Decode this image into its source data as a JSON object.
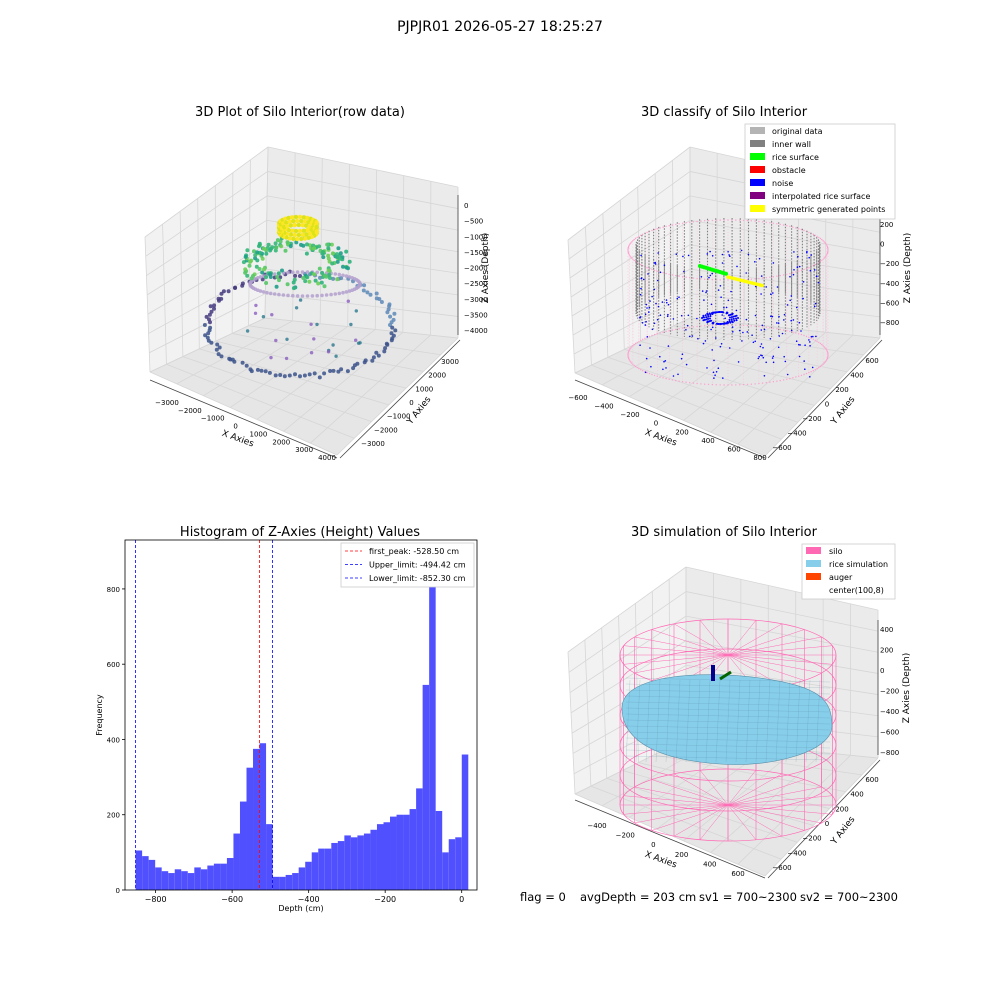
{
  "figure": {
    "title": "PJPJR01 2026-05-27 18:25:27",
    "status": {
      "flag": "flag = 0",
      "avg_depth": "avgDepth = 203 cm",
      "sv1": "sv1 = 700~2300",
      "sv2": "sv2 = 700~2300"
    }
  },
  "colors": {
    "hist_bar": "#5050ff",
    "first_peak": "#ff0000",
    "limits": "#0000ff",
    "silo": "#ff69b4",
    "rice_sim": "#87ceeb",
    "auger": "#ff4500",
    "original": "#b4b4b4",
    "inner_wall": "#808080",
    "rice_surface": "#00ff00",
    "obstacle": "#ff0000",
    "noise": "#0000ff",
    "interpolated": "#800080",
    "symmetric": "#ffff00",
    "pane": "#f2f2f2",
    "grid": "#d6d6d6"
  },
  "chart_data": [
    {
      "type": "scatter",
      "title": "3D Plot of Silo Interior(row data)",
      "xlabel": "X Axies",
      "ylabel": "Y Axies",
      "zlabel": "Z Axies (Depth)",
      "x_ticks": [
        "−3000",
        "−2000",
        "−1000",
        "0",
        "1000",
        "2000",
        "3000",
        "4000"
      ],
      "y_ticks": [
        "−3000",
        "−2000",
        "−1000",
        "0",
        "1000",
        "2000",
        "3000"
      ],
      "z_ticks": [
        "0",
        "−500",
        "−1000",
        "−1500",
        "−2000",
        "−2500",
        "−3000",
        "−3500",
        "−4000"
      ],
      "xlim": [
        -3500,
        4500
      ],
      "ylim": [
        -3500,
        3500
      ],
      "zlim": [
        -4200,
        200
      ],
      "colormap": "viridis (by depth)"
    },
    {
      "type": "scatter",
      "title": "3D classify of Silo Interior",
      "xlabel": "X Axies",
      "ylabel": "Y Axies",
      "zlabel": "Z Axies (Depth)",
      "x_ticks": [
        "−600",
        "−400",
        "−200",
        "0",
        "200",
        "400",
        "600",
        "800"
      ],
      "y_ticks": [
        "−600",
        "−400",
        "−200",
        "0",
        "200",
        "400",
        "600"
      ],
      "z_ticks": [
        "200",
        "0",
        "−200",
        "−400",
        "−600",
        "−800"
      ],
      "z_tick_partial": "0",
      "xlim": [
        -650,
        850
      ],
      "ylim": [
        -650,
        650
      ],
      "zlim": [
        -900,
        300
      ],
      "legend": {
        "position": "top-right",
        "entries": [
          {
            "label": "original data",
            "color": "#b4b4b4"
          },
          {
            "label": "inner wall",
            "color": "#808080"
          },
          {
            "label": "rice surface",
            "color": "#00ff00"
          },
          {
            "label": "obstacle",
            "color": "#ff0000"
          },
          {
            "label": "noise",
            "color": "#0000ff"
          },
          {
            "label": "interpolated rice surface",
            "color": "#800080"
          },
          {
            "label": "symmetric generated points",
            "color": "#ffff00"
          }
        ]
      }
    },
    {
      "type": "bar",
      "title": "Histogram of Z-Axies (Height) Values",
      "xlabel": "Depth (cm)",
      "ylabel": "Frequency",
      "xlim": [
        -880,
        40
      ],
      "ylim": [
        0,
        930
      ],
      "x_ticks": [
        {
          "v": -800,
          "label": "−800"
        },
        {
          "v": -600,
          "label": "−600"
        },
        {
          "v": -400,
          "label": "−400"
        },
        {
          "v": -200,
          "label": "−200"
        },
        {
          "v": 0,
          "label": "0"
        }
      ],
      "y_ticks": [
        {
          "v": 0,
          "label": "0"
        },
        {
          "v": 200,
          "label": "200"
        },
        {
          "v": 400,
          "label": "400"
        },
        {
          "v": 600,
          "label": "600"
        },
        {
          "v": 800,
          "label": "800"
        }
      ],
      "bin_start": -852.3,
      "bin_width": 17.05,
      "values": [
        105,
        90,
        80,
        60,
        50,
        45,
        55,
        50,
        45,
        60,
        55,
        65,
        70,
        70,
        85,
        150,
        235,
        325,
        375,
        390,
        175,
        35,
        35,
        40,
        45,
        60,
        75,
        100,
        110,
        110,
        125,
        130,
        145,
        140,
        145,
        150,
        160,
        175,
        180,
        195,
        200,
        200,
        215,
        270,
        545,
        880,
        210,
        100,
        135,
        140,
        360
      ],
      "vlines": [
        {
          "x": -528.5,
          "label": "first_peak: -528.50 cm",
          "color": "#ff0000"
        },
        {
          "x": -494.42,
          "label": "Upper_limit: -494.42 cm",
          "color": "#0000ff"
        },
        {
          "x": -852.3,
          "label": "Lower_limit: -852.30 cm",
          "color": "#0000ff"
        }
      ],
      "legend": {
        "position": "top-right"
      }
    },
    {
      "type": "scatter",
      "title": "3D simulation of Silo Interior",
      "xlabel": "X Axies",
      "ylabel": "Y Axies",
      "zlabel": "Z Axies (Depth)",
      "x_ticks": [
        "−400",
        "−200",
        "0",
        "200",
        "400",
        "600"
      ],
      "y_ticks": [
        "−600",
        "−400",
        "−200",
        "0",
        "200",
        "400",
        "600"
      ],
      "z_ticks": [
        "400",
        "200",
        "0",
        "−200",
        "−400",
        "−600",
        "−800"
      ],
      "xlim": [
        -550,
        750
      ],
      "ylim": [
        -700,
        700
      ],
      "zlim": [
        -900,
        450
      ],
      "legend": {
        "position": "top-right",
        "entries": [
          {
            "label": "silo",
            "color": "#ff69b4"
          },
          {
            "label": "rice simulation",
            "color": "#87ceeb"
          },
          {
            "label": "auger",
            "color": "#ff4500"
          },
          {
            "label": "center(100,8)",
            "color": ""
          }
        ]
      }
    }
  ]
}
